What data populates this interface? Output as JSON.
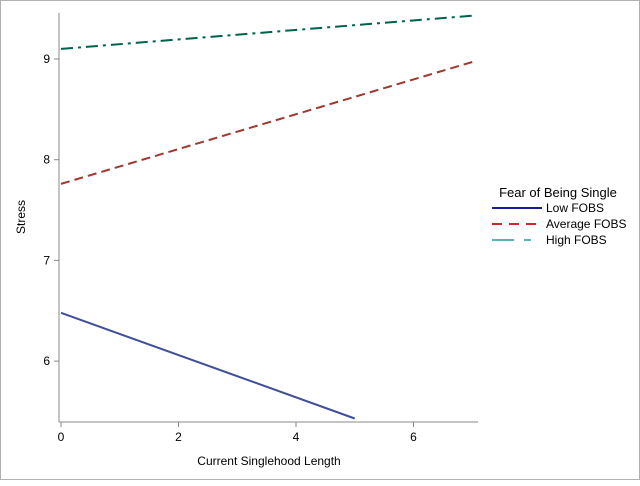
{
  "chart_data": {
    "type": "line",
    "title": "",
    "xlabel": "Current Singlehood Length",
    "ylabel": "Stress",
    "xlim": [
      0,
      7.1
    ],
    "ylim": [
      5.41,
      9.46
    ],
    "xticks": [
      0,
      2,
      4,
      6
    ],
    "yticks": [
      6,
      7,
      8,
      9
    ],
    "grid": false,
    "legend": {
      "title": "Fear of Being Single",
      "placement": "right"
    },
    "series": [
      {
        "name": "Low FOBS",
        "x": [
          0,
          5
        ],
        "y": [
          6.48,
          5.43
        ],
        "color": "#3f4f9a",
        "legend_color": "#1a1aa0",
        "dash": "solid"
      },
      {
        "name": "Average FOBS",
        "x": [
          0,
          7
        ],
        "y": [
          7.76,
          8.97
        ],
        "color": "#a0382e",
        "legend_color": "#cc2a2a",
        "dash": "dashed"
      },
      {
        "name": "High FOBS",
        "x": [
          0,
          7
        ],
        "y": [
          9.1,
          9.43
        ],
        "color": "#00614f",
        "legend_color": "#5fb0b0",
        "dash": "dash-dot"
      }
    ]
  }
}
